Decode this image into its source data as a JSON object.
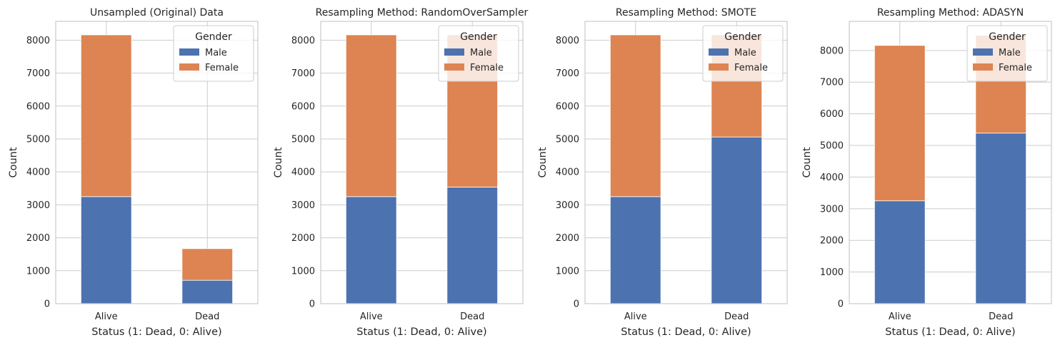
{
  "figure": {
    "background": "#ffffff"
  },
  "chart_data": [
    {
      "type": "bar",
      "stacked": true,
      "title": "Unsampled (Original) Data",
      "xlabel": "Status (1: Dead, 0: Alive)",
      "ylabel": "Count",
      "categories": [
        "Alive",
        "Dead"
      ],
      "series": [
        {
          "name": "Male",
          "color": "#4c72b0",
          "values": [
            3250,
            710
          ]
        },
        {
          "name": "Female",
          "color": "#dd8452",
          "values": [
            4910,
            960
          ]
        }
      ],
      "ylim": [
        0,
        8570
      ],
      "yticks": [
        0,
        1000,
        2000,
        3000,
        4000,
        5000,
        6000,
        7000,
        8000
      ],
      "grid": true,
      "legend": {
        "title": "Gender",
        "position": "top-right"
      }
    },
    {
      "type": "bar",
      "stacked": true,
      "title": "Resampling Method: RandomOverSampler",
      "xlabel": "Status (1: Dead, 0: Alive)",
      "ylabel": "Count",
      "categories": [
        "Alive",
        "Dead"
      ],
      "series": [
        {
          "name": "Male",
          "color": "#4c72b0",
          "values": [
            3250,
            3540
          ]
        },
        {
          "name": "Female",
          "color": "#dd8452",
          "values": [
            4910,
            4620
          ]
        }
      ],
      "ylim": [
        0,
        8570
      ],
      "yticks": [
        0,
        1000,
        2000,
        3000,
        4000,
        5000,
        6000,
        7000,
        8000
      ],
      "grid": true,
      "legend": {
        "title": "Gender",
        "position": "top-right"
      }
    },
    {
      "type": "bar",
      "stacked": true,
      "title": "Resampling Method: SMOTE",
      "xlabel": "Status (1: Dead, 0: Alive)",
      "ylabel": "Count",
      "categories": [
        "Alive",
        "Dead"
      ],
      "series": [
        {
          "name": "Male",
          "color": "#4c72b0",
          "values": [
            3250,
            5060
          ]
        },
        {
          "name": "Female",
          "color": "#dd8452",
          "values": [
            4910,
            3100
          ]
        }
      ],
      "ylim": [
        0,
        8570
      ],
      "yticks": [
        0,
        1000,
        2000,
        3000,
        4000,
        5000,
        6000,
        7000,
        8000
      ],
      "grid": true,
      "legend": {
        "title": "Gender",
        "position": "top-right"
      }
    },
    {
      "type": "bar",
      "stacked": true,
      "title": "Resampling Method: ADASYN",
      "xlabel": "Status (1: Dead, 0: Alive)",
      "ylabel": "Count",
      "categories": [
        "Alive",
        "Dead"
      ],
      "series": [
        {
          "name": "Male",
          "color": "#4c72b0",
          "values": [
            3250,
            5390
          ]
        },
        {
          "name": "Female",
          "color": "#dd8452",
          "values": [
            4910,
            3090
          ]
        }
      ],
      "ylim": [
        0,
        8920
      ],
      "yticks": [
        0,
        1000,
        2000,
        3000,
        4000,
        5000,
        6000,
        7000,
        8000
      ],
      "grid": true,
      "legend": {
        "title": "Gender",
        "position": "top-right"
      }
    }
  ]
}
